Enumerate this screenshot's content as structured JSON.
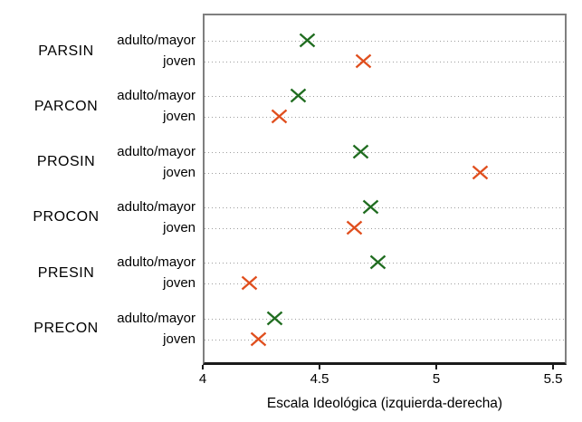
{
  "figure": {
    "background": "#ffffff",
    "plot_border_color": "#7f7f7f",
    "axis_line_color": "#1a1a1a",
    "gridline_color": "#9e9e9e",
    "text_color": "#000000"
  },
  "chart_data": {
    "type": "scatter",
    "subtype": "horizontal-dot-plot",
    "title": "",
    "xlabel": "Escala Ideológica (izquierda-derecha)",
    "ylabel": "",
    "xlim": [
      4,
      5.56
    ],
    "xtick_values": [
      4,
      4.5,
      5,
      5.5
    ],
    "xtick_labels": [
      "4",
      "4.5",
      "5",
      "5.5"
    ],
    "grid": "dotted horizontal line per row",
    "legend_position": "none",
    "marker_shape": "x",
    "groups": [
      "PARSIN",
      "PARCON",
      "PROSIN",
      "PROCON",
      "PRESIN",
      "PRECON"
    ],
    "row_labels": [
      "adulto/mayor",
      "joven"
    ],
    "series": [
      {
        "name": "adulto/mayor",
        "color": "#1f6c1f",
        "values": [
          4.45,
          4.41,
          4.68,
          4.72,
          4.75,
          4.31
        ]
      },
      {
        "name": "joven",
        "color": "#e04e1d",
        "values": [
          4.69,
          4.33,
          5.19,
          4.65,
          4.2,
          4.24
        ]
      }
    ]
  }
}
